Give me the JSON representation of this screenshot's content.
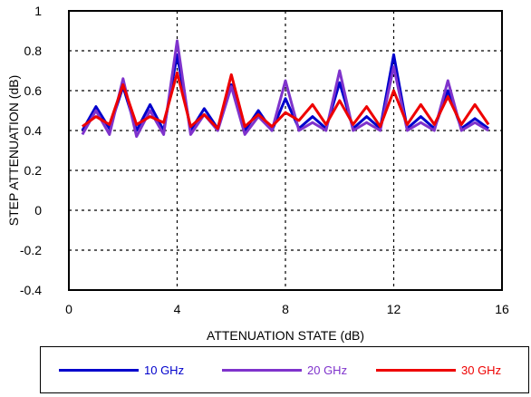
{
  "chart_data": {
    "type": "line",
    "xlabel": "ATTENUATION STATE (dB)",
    "ylabel": "STEP ATTENUATION (dB)",
    "xlim": [
      0,
      16
    ],
    "ylim": [
      -0.4,
      1
    ],
    "xticks": [
      "0",
      "4",
      "8",
      "12",
      "16"
    ],
    "yticks": [
      "-0.4",
      "-0.2",
      "0",
      "0.2",
      "0.4",
      "0.6",
      "0.8",
      "1"
    ],
    "grid": true,
    "legend_position": "bottom",
    "x": [
      0.5,
      1,
      1.5,
      2,
      2.5,
      3,
      3.5,
      4,
      4.5,
      5,
      5.5,
      6,
      6.5,
      7,
      7.5,
      8,
      8.5,
      9,
      9.5,
      10,
      10.5,
      11,
      11.5,
      12,
      12.5,
      13,
      13.5,
      14,
      14.5,
      15,
      15.5
    ],
    "series": [
      {
        "name": "10 GHz",
        "color": "#0000cc",
        "values": [
          0.4,
          0.52,
          0.41,
          0.62,
          0.4,
          0.53,
          0.4,
          0.78,
          0.4,
          0.51,
          0.41,
          0.63,
          0.4,
          0.5,
          0.4,
          0.56,
          0.41,
          0.47,
          0.41,
          0.64,
          0.41,
          0.47,
          0.41,
          0.78,
          0.41,
          0.47,
          0.41,
          0.6,
          0.41,
          0.46,
          0.41
        ]
      },
      {
        "name": "20 GHz",
        "color": "#7f33cc",
        "values": [
          0.38,
          0.5,
          0.38,
          0.66,
          0.37,
          0.5,
          0.38,
          0.85,
          0.38,
          0.48,
          0.4,
          0.62,
          0.38,
          0.47,
          0.4,
          0.65,
          0.4,
          0.44,
          0.4,
          0.7,
          0.4,
          0.44,
          0.4,
          0.72,
          0.4,
          0.44,
          0.4,
          0.65,
          0.4,
          0.44,
          0.4
        ]
      },
      {
        "name": "30 GHz",
        "color": "#ee0000",
        "values": [
          0.42,
          0.47,
          0.43,
          0.63,
          0.43,
          0.47,
          0.44,
          0.69,
          0.42,
          0.48,
          0.41,
          0.68,
          0.42,
          0.48,
          0.42,
          0.49,
          0.45,
          0.53,
          0.43,
          0.55,
          0.43,
          0.52,
          0.42,
          0.6,
          0.43,
          0.53,
          0.43,
          0.57,
          0.43,
          0.53,
          0.43
        ]
      }
    ]
  },
  "legend": {
    "items": [
      "10 GHz",
      "20 GHz",
      "30 GHz"
    ]
  }
}
